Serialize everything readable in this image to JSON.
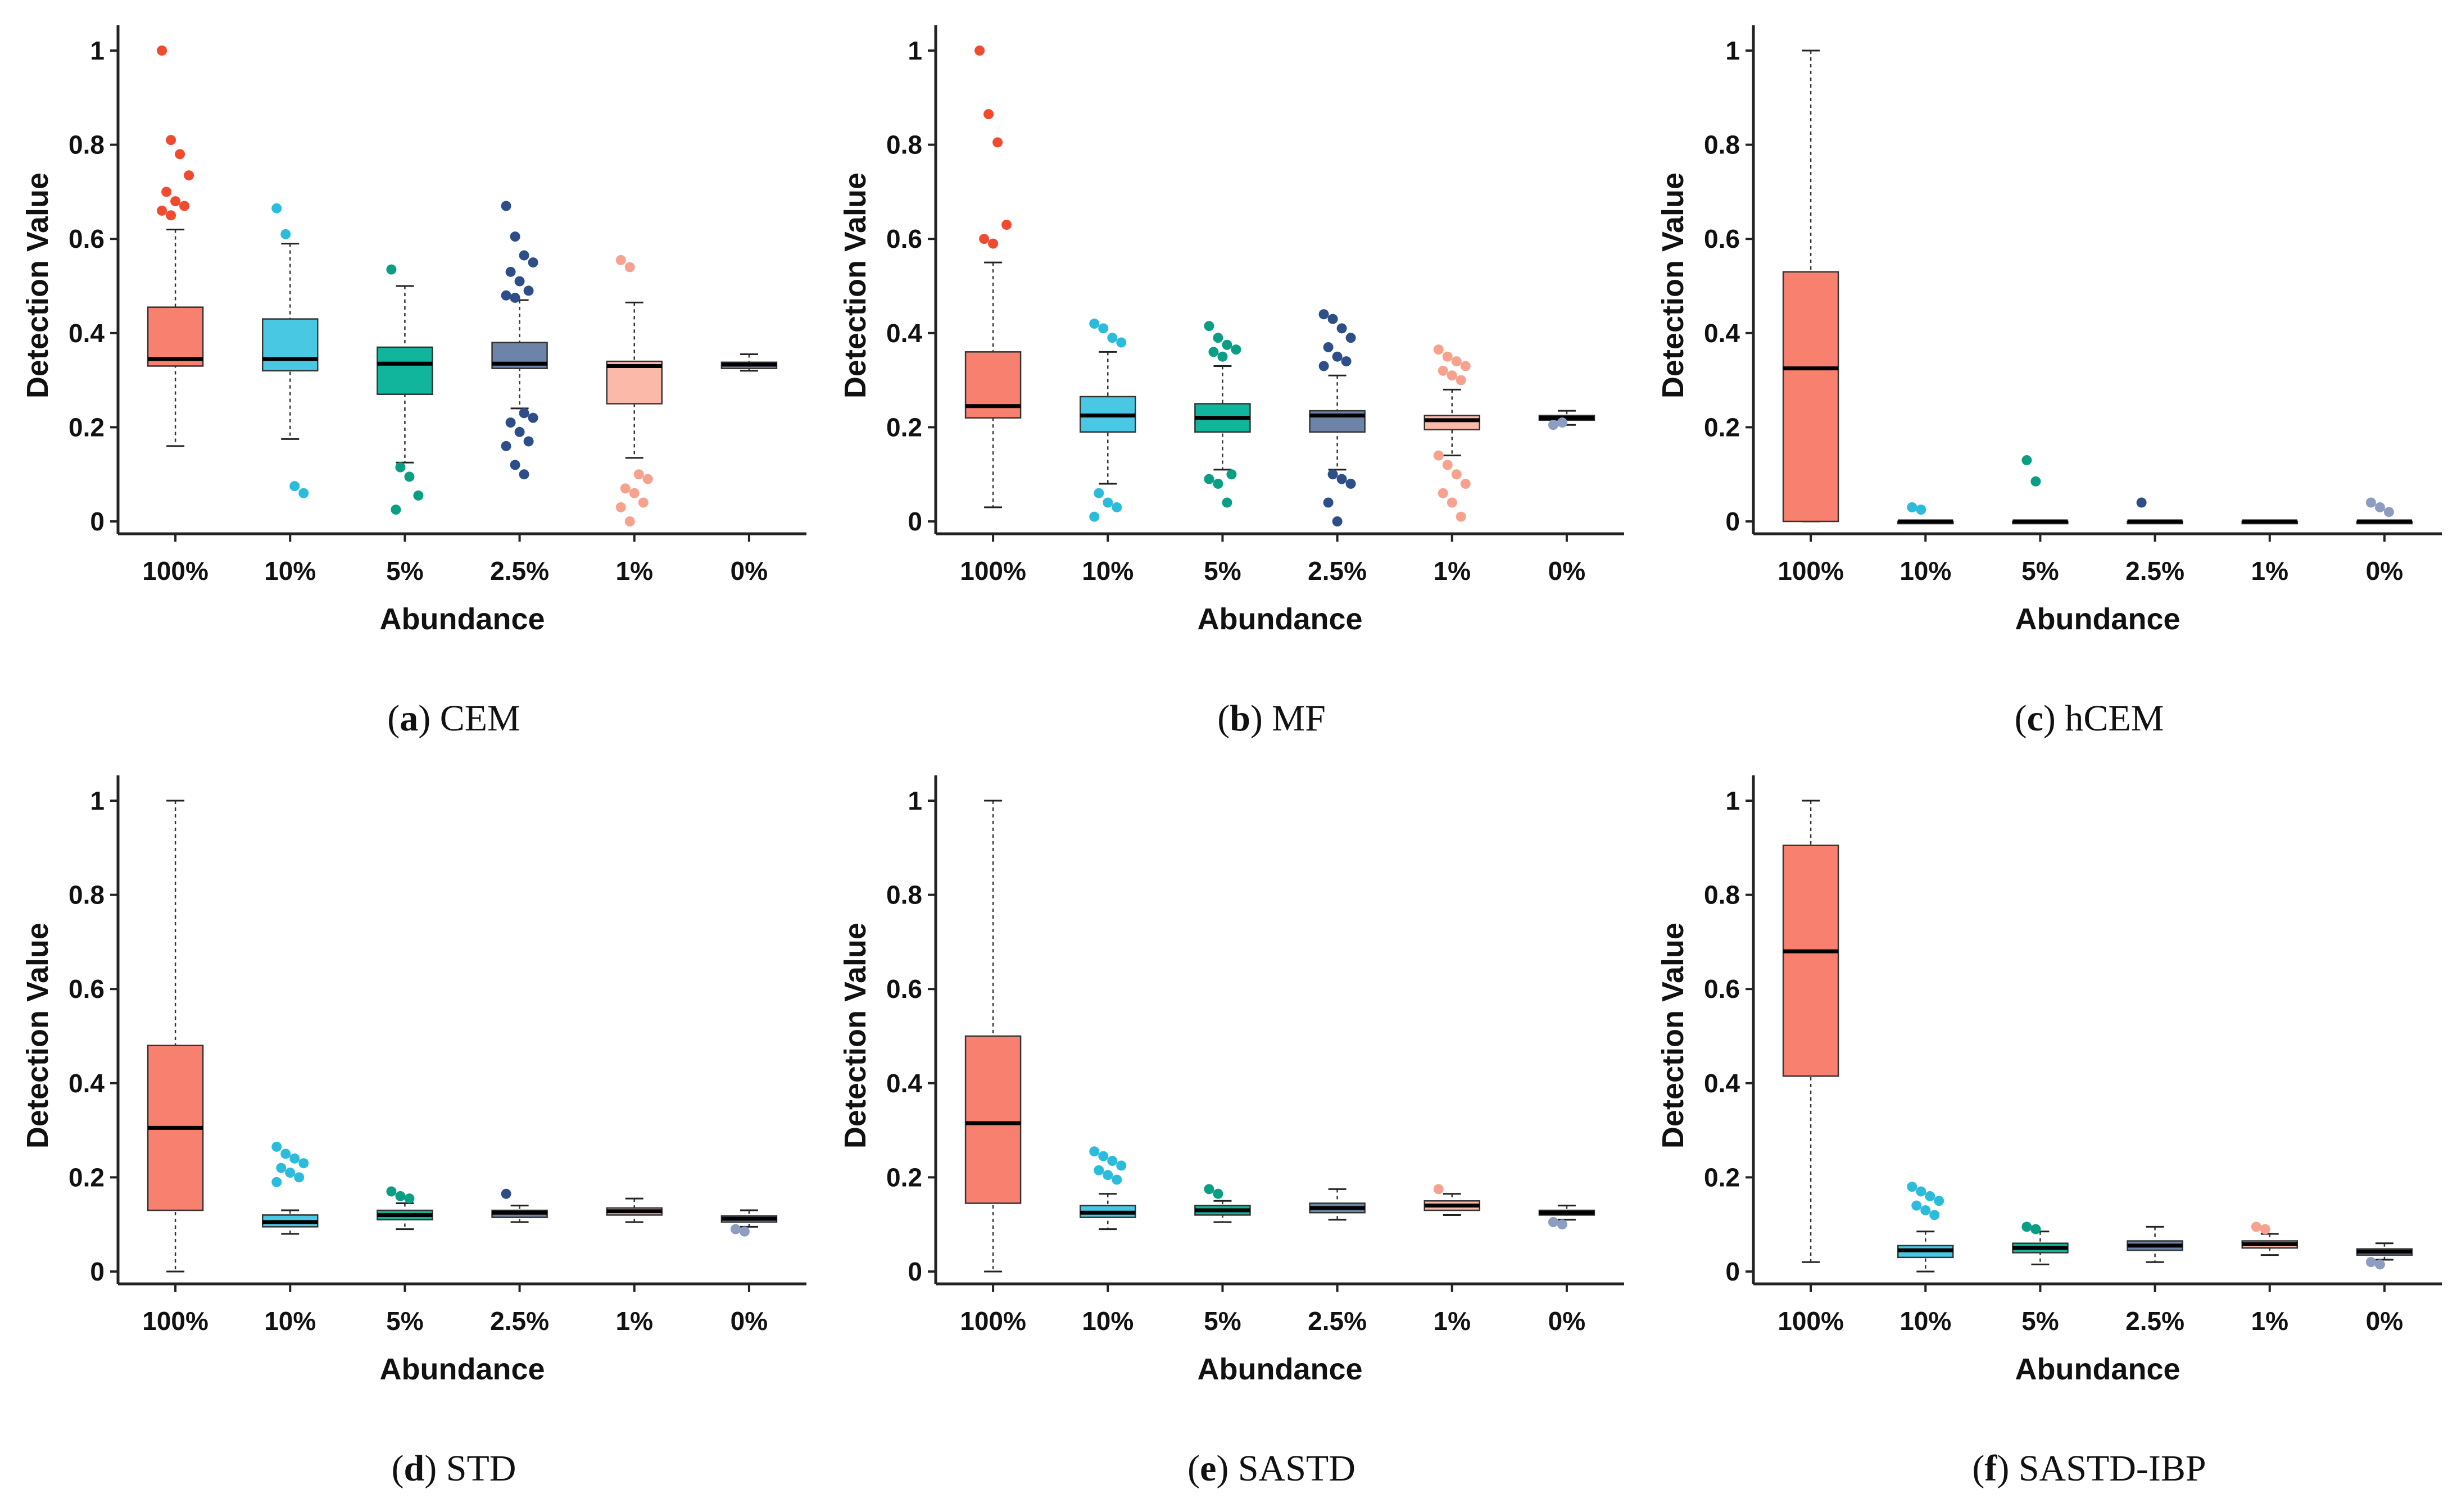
{
  "chart_data": [
    {
      "type": "box",
      "caption_letter": "a",
      "caption_name": "CEM",
      "xlabel": "Abundance",
      "ylabel": "Detection Value",
      "ylim": [
        0,
        1
      ],
      "yticks": [
        "0",
        "0.2",
        "0.4",
        "0.6",
        "0.8",
        "1"
      ],
      "categories": [
        "100%",
        "10%",
        "5%",
        "2.5%",
        "1%",
        "0%"
      ],
      "boxes": [
        {
          "q1": 0.33,
          "median": 0.345,
          "q3": 0.455,
          "lower": 0.16,
          "upper": 0.62,
          "outliers": [
            1.0,
            0.81,
            0.78,
            0.735,
            0.7,
            0.68,
            0.67,
            0.66,
            0.65
          ]
        },
        {
          "q1": 0.32,
          "median": 0.345,
          "q3": 0.43,
          "lower": 0.175,
          "upper": 0.59,
          "outliers": [
            0.665,
            0.61,
            0.075,
            0.06
          ]
        },
        {
          "q1": 0.27,
          "median": 0.335,
          "q3": 0.37,
          "lower": 0.125,
          "upper": 0.5,
          "outliers": [
            0.535,
            0.115,
            0.095,
            0.055,
            0.025
          ]
        },
        {
          "q1": 0.325,
          "median": 0.335,
          "q3": 0.38,
          "lower": 0.24,
          "upper": 0.47,
          "outliers": [
            0.67,
            0.605,
            0.565,
            0.55,
            0.53,
            0.51,
            0.49,
            0.48,
            0.475,
            0.23,
            0.22,
            0.21,
            0.19,
            0.17,
            0.16,
            0.12,
            0.1
          ]
        },
        {
          "q1": 0.25,
          "median": 0.33,
          "q3": 0.34,
          "lower": 0.135,
          "upper": 0.465,
          "outliers": [
            0.555,
            0.54,
            0.1,
            0.09,
            0.07,
            0.06,
            0.04,
            0.03,
            0.0
          ]
        },
        {
          "q1": 0.325,
          "median": 0.333,
          "q3": 0.338,
          "lower": 0.32,
          "upper": 0.355,
          "outliers": []
        }
      ]
    },
    {
      "type": "box",
      "caption_letter": "b",
      "caption_name": "MF",
      "xlabel": "Abundance",
      "ylabel": "Detection Value",
      "ylim": [
        0,
        1
      ],
      "yticks": [
        "0",
        "0.2",
        "0.4",
        "0.6",
        "0.8",
        "1"
      ],
      "categories": [
        "100%",
        "10%",
        "5%",
        "2.5%",
        "1%",
        "0%"
      ],
      "boxes": [
        {
          "q1": 0.22,
          "median": 0.245,
          "q3": 0.36,
          "lower": 0.03,
          "upper": 0.55,
          "outliers": [
            1.0,
            0.865,
            0.805,
            0.63,
            0.6,
            0.59
          ]
        },
        {
          "q1": 0.19,
          "median": 0.225,
          "q3": 0.265,
          "lower": 0.08,
          "upper": 0.36,
          "outliers": [
            0.42,
            0.41,
            0.39,
            0.38,
            0.06,
            0.04,
            0.03,
            0.01
          ]
        },
        {
          "q1": 0.19,
          "median": 0.22,
          "q3": 0.25,
          "lower": 0.11,
          "upper": 0.33,
          "outliers": [
            0.415,
            0.39,
            0.375,
            0.365,
            0.36,
            0.35,
            0.1,
            0.09,
            0.08,
            0.04
          ]
        },
        {
          "q1": 0.19,
          "median": 0.225,
          "q3": 0.235,
          "lower": 0.11,
          "upper": 0.31,
          "outliers": [
            0.44,
            0.43,
            0.41,
            0.39,
            0.37,
            0.35,
            0.34,
            0.33,
            0.1,
            0.09,
            0.08,
            0.04,
            0.0
          ]
        },
        {
          "q1": 0.195,
          "median": 0.215,
          "q3": 0.225,
          "lower": 0.14,
          "upper": 0.28,
          "outliers": [
            0.365,
            0.35,
            0.34,
            0.33,
            0.32,
            0.31,
            0.3,
            0.14,
            0.12,
            0.1,
            0.08,
            0.06,
            0.04,
            0.01
          ]
        },
        {
          "q1": 0.215,
          "median": 0.22,
          "q3": 0.225,
          "lower": 0.205,
          "upper": 0.235,
          "outliers": [
            0.205,
            0.21
          ]
        }
      ]
    },
    {
      "type": "box",
      "caption_letter": "c",
      "caption_name": "hCEM",
      "xlabel": "Abundance",
      "ylabel": "Detection Value",
      "ylim": [
        0,
        1
      ],
      "yticks": [
        "0",
        "0.2",
        "0.4",
        "0.6",
        "0.8",
        "1"
      ],
      "categories": [
        "100%",
        "10%",
        "5%",
        "2.5%",
        "1%",
        "0%"
      ],
      "boxes": [
        {
          "q1": 0.0,
          "median": 0.325,
          "q3": 0.53,
          "lower": 0.0,
          "upper": 1.0,
          "outliers": []
        },
        {
          "q1": 0.0,
          "median": 0.0,
          "q3": 0.0,
          "lower": 0.0,
          "upper": 0.0,
          "outliers": [
            0.03,
            0.025
          ]
        },
        {
          "q1": 0.0,
          "median": 0.0,
          "q3": 0.0,
          "lower": 0.0,
          "upper": 0.0,
          "outliers": [
            0.13,
            0.085
          ]
        },
        {
          "q1": 0.0,
          "median": 0.0,
          "q3": 0.0,
          "lower": 0.0,
          "upper": 0.0,
          "outliers": [
            0.04
          ]
        },
        {
          "q1": 0.0,
          "median": 0.0,
          "q3": 0.0,
          "lower": 0.0,
          "upper": 0.0,
          "outliers": []
        },
        {
          "q1": 0.0,
          "median": 0.0,
          "q3": 0.0,
          "lower": 0.0,
          "upper": 0.0,
          "outliers": [
            0.04,
            0.03,
            0.02
          ]
        }
      ]
    },
    {
      "type": "box",
      "caption_letter": "d",
      "caption_name": "STD",
      "xlabel": "Abundance",
      "ylabel": "Detection Value",
      "ylim": [
        0,
        1
      ],
      "yticks": [
        "0",
        "0.2",
        "0.4",
        "0.6",
        "0.8",
        "1"
      ],
      "categories": [
        "100%",
        "10%",
        "5%",
        "2.5%",
        "1%",
        "0%"
      ],
      "boxes": [
        {
          "q1": 0.13,
          "median": 0.305,
          "q3": 0.48,
          "lower": 0.0,
          "upper": 1.0,
          "outliers": []
        },
        {
          "q1": 0.095,
          "median": 0.105,
          "q3": 0.12,
          "lower": 0.08,
          "upper": 0.13,
          "outliers": [
            0.265,
            0.25,
            0.24,
            0.23,
            0.22,
            0.21,
            0.2,
            0.19
          ]
        },
        {
          "q1": 0.11,
          "median": 0.12,
          "q3": 0.13,
          "lower": 0.09,
          "upper": 0.145,
          "outliers": [
            0.17,
            0.16,
            0.155
          ]
        },
        {
          "q1": 0.115,
          "median": 0.125,
          "q3": 0.13,
          "lower": 0.105,
          "upper": 0.14,
          "outliers": [
            0.165
          ]
        },
        {
          "q1": 0.12,
          "median": 0.128,
          "q3": 0.135,
          "lower": 0.105,
          "upper": 0.155,
          "outliers": []
        },
        {
          "q1": 0.105,
          "median": 0.112,
          "q3": 0.118,
          "lower": 0.095,
          "upper": 0.13,
          "outliers": [
            0.09,
            0.085
          ]
        }
      ]
    },
    {
      "type": "box",
      "caption_letter": "e",
      "caption_name": "SASTD",
      "xlabel": "Abundance",
      "ylabel": "Detection Value",
      "ylim": [
        0,
        1
      ],
      "yticks": [
        "0",
        "0.2",
        "0.4",
        "0.6",
        "0.8",
        "1"
      ],
      "categories": [
        "100%",
        "10%",
        "5%",
        "2.5%",
        "1%",
        "0%"
      ],
      "boxes": [
        {
          "q1": 0.145,
          "median": 0.315,
          "q3": 0.5,
          "lower": 0.0,
          "upper": 1.0,
          "outliers": []
        },
        {
          "q1": 0.115,
          "median": 0.125,
          "q3": 0.14,
          "lower": 0.09,
          "upper": 0.165,
          "outliers": [
            0.255,
            0.245,
            0.235,
            0.225,
            0.215,
            0.205,
            0.195
          ]
        },
        {
          "q1": 0.12,
          "median": 0.13,
          "q3": 0.14,
          "lower": 0.105,
          "upper": 0.15,
          "outliers": [
            0.175,
            0.165
          ]
        },
        {
          "q1": 0.125,
          "median": 0.135,
          "q3": 0.145,
          "lower": 0.11,
          "upper": 0.175,
          "outliers": []
        },
        {
          "q1": 0.13,
          "median": 0.14,
          "q3": 0.15,
          "lower": 0.12,
          "upper": 0.165,
          "outliers": [
            0.175
          ]
        },
        {
          "q1": 0.12,
          "median": 0.125,
          "q3": 0.13,
          "lower": 0.11,
          "upper": 0.14,
          "outliers": [
            0.105,
            0.1
          ]
        }
      ]
    },
    {
      "type": "box",
      "caption_letter": "f",
      "caption_name": "SASTD-IBP",
      "xlabel": "Abundance",
      "ylabel": "Detection Value",
      "ylim": [
        0,
        1
      ],
      "yticks": [
        "0",
        "0.2",
        "0.4",
        "0.6",
        "0.8",
        "1"
      ],
      "categories": [
        "100%",
        "10%",
        "5%",
        "2.5%",
        "1%",
        "0%"
      ],
      "boxes": [
        {
          "q1": 0.415,
          "median": 0.68,
          "q3": 0.905,
          "lower": 0.02,
          "upper": 1.0,
          "outliers": []
        },
        {
          "q1": 0.03,
          "median": 0.045,
          "q3": 0.055,
          "lower": 0.0,
          "upper": 0.085,
          "outliers": [
            0.18,
            0.17,
            0.16,
            0.15,
            0.14,
            0.13,
            0.12
          ]
        },
        {
          "q1": 0.04,
          "median": 0.05,
          "q3": 0.06,
          "lower": 0.015,
          "upper": 0.085,
          "outliers": [
            0.095,
            0.09
          ]
        },
        {
          "q1": 0.045,
          "median": 0.055,
          "q3": 0.065,
          "lower": 0.02,
          "upper": 0.095,
          "outliers": []
        },
        {
          "q1": 0.05,
          "median": 0.058,
          "q3": 0.065,
          "lower": 0.035,
          "upper": 0.08,
          "outliers": [
            0.095,
            0.09
          ]
        },
        {
          "q1": 0.035,
          "median": 0.042,
          "q3": 0.048,
          "lower": 0.025,
          "upper": 0.06,
          "outliers": [
            0.02,
            0.015
          ]
        }
      ]
    }
  ],
  "colors": {
    "box_fill": [
      "#F8806F",
      "#49C8E4",
      "#10B59C",
      "#6E83A8",
      "#FBB9A9",
      "#8D9CC1"
    ],
    "point": [
      "#F04A2F",
      "#2BBCDC",
      "#0A9E84",
      "#2D4E86",
      "#F7A28F",
      "#8D9CC1"
    ]
  }
}
